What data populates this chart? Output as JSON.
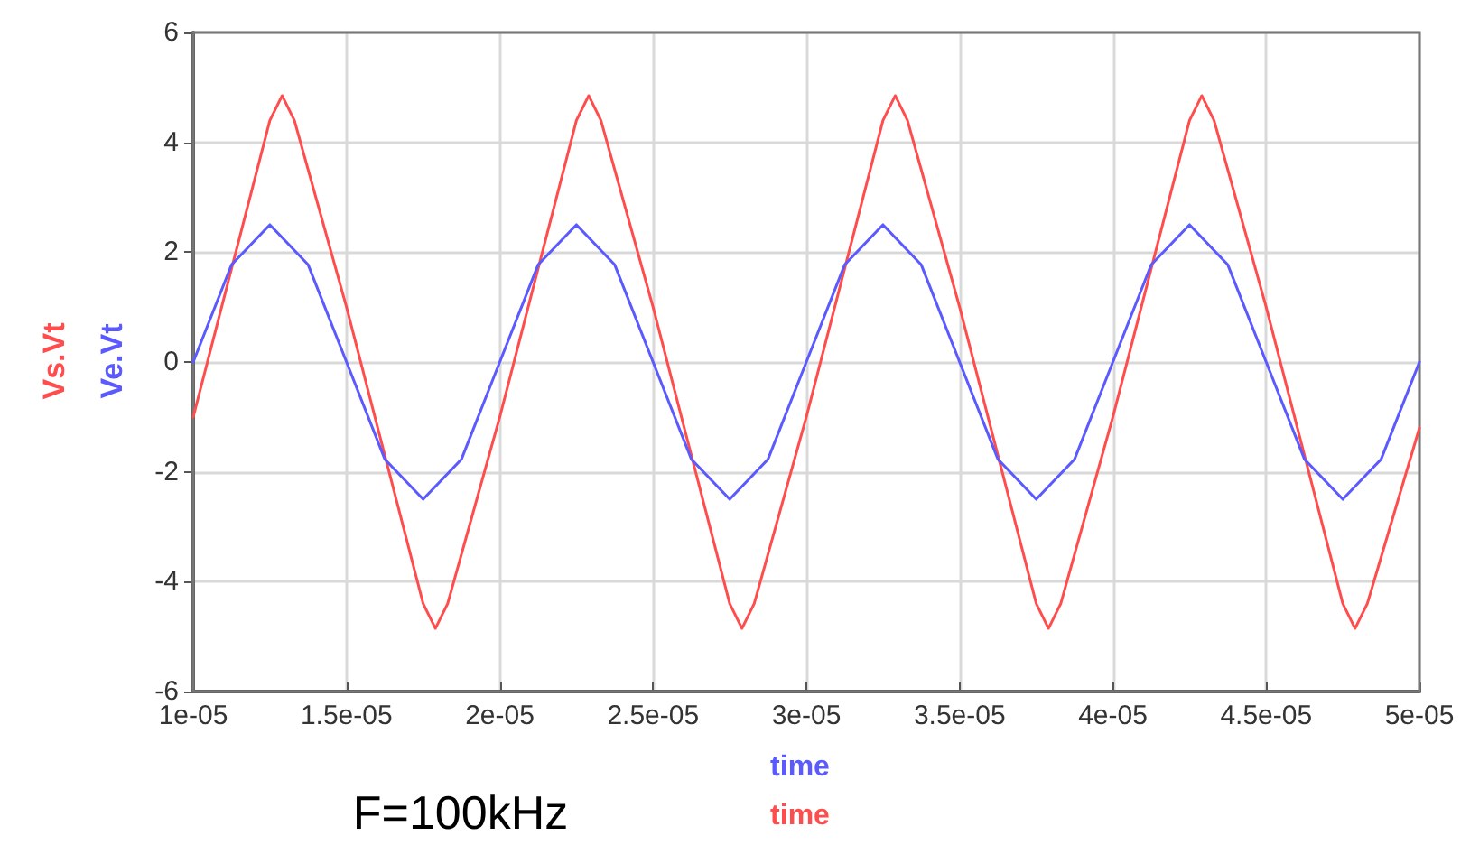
{
  "chart_data": {
    "type": "line",
    "xlabel": "time",
    "annotations": [
      "time",
      "F=100kHz"
    ],
    "xlim": [
      1e-05,
      5e-05
    ],
    "xticks": [
      {
        "value": 1e-05,
        "label": "1e-05"
      },
      {
        "value": 1.5e-05,
        "label": "1.5e-05"
      },
      {
        "value": 2e-05,
        "label": "2e-05"
      },
      {
        "value": 2.5e-05,
        "label": "2.5e-05"
      },
      {
        "value": 3e-05,
        "label": "3e-05"
      },
      {
        "value": 3.5e-05,
        "label": "3.5e-05"
      },
      {
        "value": 4e-05,
        "label": "4e-05"
      },
      {
        "value": 4.5e-05,
        "label": "4.5e-05"
      },
      {
        "value": 5e-05,
        "label": "5e-05"
      }
    ],
    "ylim": [
      -6,
      6
    ],
    "yticks": [
      -6,
      -4,
      -2,
      0,
      2,
      4,
      6
    ],
    "grid": true,
    "legend": "left",
    "marker": "none",
    "series": [
      {
        "name": "Vs.Vt",
        "color": "#ff4d4d",
        "x": [
          1e-05,
          1.25e-05,
          1.29e-05,
          1.33e-05,
          1.5e-05,
          1.75e-05,
          1.79e-05,
          1.83e-05,
          2e-05,
          2.25e-05,
          2.29e-05,
          2.33e-05,
          2.5e-05,
          2.75e-05,
          2.79e-05,
          2.83e-05,
          3e-05,
          3.25e-05,
          3.29e-05,
          3.33e-05,
          3.5e-05,
          3.75e-05,
          3.79e-05,
          3.83e-05,
          4e-05,
          4.25e-05,
          4.29e-05,
          4.33e-05,
          4.5e-05,
          4.75e-05,
          4.79e-05,
          4.83e-05,
          5e-05
        ],
        "values": [
          -1.0,
          4.4,
          4.85,
          4.4,
          1.0,
          -4.4,
          -4.85,
          -4.4,
          -1.0,
          4.4,
          4.85,
          4.4,
          1.0,
          -4.4,
          -4.85,
          -4.4,
          -1.0,
          4.4,
          4.85,
          4.4,
          1.0,
          -4.4,
          -4.85,
          -4.4,
          -1.0,
          4.4,
          4.85,
          4.4,
          1.0,
          -4.4,
          -4.85,
          -4.4,
          -1.2
        ]
      },
      {
        "name": "Ve.Vt",
        "color": "#5a5aff",
        "x": [
          1e-05,
          1.125e-05,
          1.25e-05,
          1.375e-05,
          1.5e-05,
          1.625e-05,
          1.75e-05,
          1.875e-05,
          2e-05,
          2.125e-05,
          2.25e-05,
          2.375e-05,
          2.5e-05,
          2.625e-05,
          2.75e-05,
          2.875e-05,
          3e-05,
          3.125e-05,
          3.25e-05,
          3.375e-05,
          3.5e-05,
          3.625e-05,
          3.75e-05,
          3.875e-05,
          4e-05,
          4.125e-05,
          4.25e-05,
          4.375e-05,
          4.5e-05,
          4.625e-05,
          4.75e-05,
          4.875e-05,
          5e-05
        ],
        "values": [
          0,
          1.77,
          2.5,
          1.77,
          0,
          -1.77,
          -2.5,
          -1.77,
          0,
          1.77,
          2.5,
          1.77,
          0,
          -1.77,
          -2.5,
          -1.77,
          0,
          1.77,
          2.5,
          1.77,
          0,
          -1.77,
          -2.5,
          -1.77,
          0,
          1.77,
          2.5,
          1.77,
          0,
          -1.77,
          -2.5,
          -1.77,
          0
        ]
      }
    ]
  }
}
